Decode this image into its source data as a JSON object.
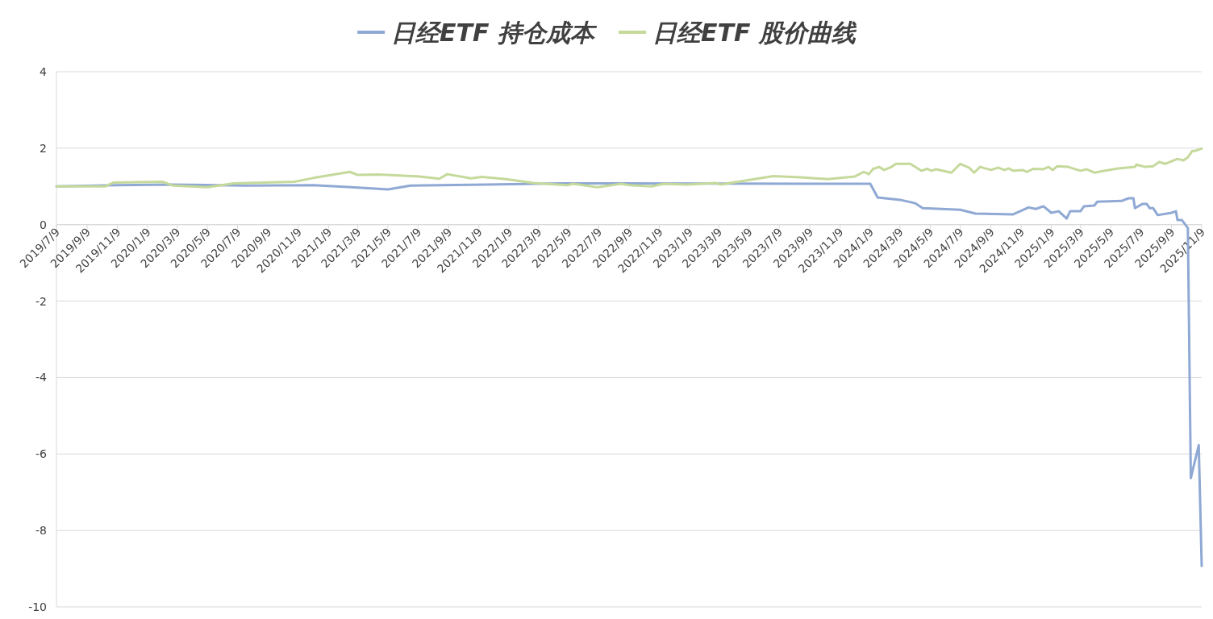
{
  "chart_data": {
    "type": "line",
    "legend": "top",
    "grid": "y",
    "xlim": [
      "2019-07-09",
      "2025-11-09"
    ],
    "xticks": [
      {
        "value": "2019-07-09",
        "label": "2019/7/9"
      },
      {
        "value": "2019-09-09",
        "label": "2019/9/9"
      },
      {
        "value": "2019-11-09",
        "label": "2019/11/9"
      },
      {
        "value": "2020-01-09",
        "label": "2020/1/9"
      },
      {
        "value": "2020-03-09",
        "label": "2020/3/9"
      },
      {
        "value": "2020-05-09",
        "label": "2020/5/9"
      },
      {
        "value": "2020-07-09",
        "label": "2020/7/9"
      },
      {
        "value": "2020-09-09",
        "label": "2020/9/9"
      },
      {
        "value": "2020-11-09",
        "label": "2020/11/9"
      },
      {
        "value": "2021-01-09",
        "label": "2021/1/9"
      },
      {
        "value": "2021-03-09",
        "label": "2021/3/9"
      },
      {
        "value": "2021-05-09",
        "label": "2021/5/9"
      },
      {
        "value": "2021-07-09",
        "label": "2021/7/9"
      },
      {
        "value": "2021-09-09",
        "label": "2021/9/9"
      },
      {
        "value": "2021-11-09",
        "label": "2021/11/9"
      },
      {
        "value": "2022-01-09",
        "label": "2022/1/9"
      },
      {
        "value": "2022-03-09",
        "label": "2022/3/9"
      },
      {
        "value": "2022-05-09",
        "label": "2022/5/9"
      },
      {
        "value": "2022-07-09",
        "label": "2022/7/9"
      },
      {
        "value": "2022-09-09",
        "label": "2022/9/9"
      },
      {
        "value": "2022-11-09",
        "label": "2022/11/9"
      },
      {
        "value": "2023-01-09",
        "label": "2023/1/9"
      },
      {
        "value": "2023-03-09",
        "label": "2023/3/9"
      },
      {
        "value": "2023-05-09",
        "label": "2023/5/9"
      },
      {
        "value": "2023-07-09",
        "label": "2023/7/9"
      },
      {
        "value": "2023-09-09",
        "label": "2023/9/9"
      },
      {
        "value": "2023-11-09",
        "label": "2023/11/9"
      },
      {
        "value": "2024-01-09",
        "label": "2024/1/9"
      },
      {
        "value": "2024-03-09",
        "label": "2024/3/9"
      },
      {
        "value": "2024-05-09",
        "label": "2024/5/9"
      },
      {
        "value": "2024-07-09",
        "label": "2024/7/9"
      },
      {
        "value": "2024-09-09",
        "label": "2024/9/9"
      },
      {
        "value": "2024-11-09",
        "label": "2024/11/9"
      },
      {
        "value": "2025-01-09",
        "label": "2025/1/9"
      },
      {
        "value": "2025-03-09",
        "label": "2025/3/9"
      },
      {
        "value": "2025-05-09",
        "label": "2025/5/9"
      },
      {
        "value": "2025-07-09",
        "label": "2025/7/9"
      },
      {
        "value": "2025-09-09",
        "label": "2025/9/9"
      },
      {
        "value": "2025-11-09",
        "label": "2025/11/9"
      }
    ],
    "ylim": [
      -10,
      4
    ],
    "yticks": [
      -10,
      -8,
      -6,
      -4,
      -2,
      0,
      2,
      4
    ],
    "series": [
      {
        "name": "日经ETF 持仓成本",
        "color": "#8fa9d4",
        "x": [
          "2019-07-09",
          "2019-11-09",
          "2020-02-24",
          "2020-07-24",
          "2020-12-09",
          "2021-02-24",
          "2021-05-09",
          "2021-06-24",
          "2021-11-24",
          "2022-04-24",
          "2023-09-09",
          "2024-01-09",
          "2024-01-24",
          "2024-03-09",
          "2024-04-09",
          "2024-04-24",
          "2024-07-09",
          "2024-08-09",
          "2024-10-24",
          "2024-11-24",
          "2024-12-09",
          "2024-12-24",
          "2025-01-09",
          "2025-01-24",
          "2025-02-09",
          "2025-02-16",
          "2025-03-09",
          "2025-03-16",
          "2025-04-06",
          "2025-04-12",
          "2025-05-31",
          "2025-06-14",
          "2025-06-24",
          "2025-06-27",
          "2025-07-12",
          "2025-07-21",
          "2025-07-27",
          "2025-08-03",
          "2025-08-12",
          "2025-09-09",
          "2025-09-18",
          "2025-09-21",
          "2025-09-30",
          "2025-10-12",
          "2025-10-18",
          "2025-11-03",
          "2025-11-09"
        ],
        "values": [
          1.0,
          1.03,
          1.05,
          1.02,
          1.03,
          0.98,
          0.92,
          1.02,
          1.05,
          1.08,
          1.07,
          1.07,
          0.71,
          0.65,
          0.56,
          0.43,
          0.39,
          0.29,
          0.27,
          0.45,
          0.41,
          0.48,
          0.31,
          0.35,
          0.16,
          0.35,
          0.35,
          0.48,
          0.5,
          0.6,
          0.62,
          0.69,
          0.69,
          0.43,
          0.54,
          0.54,
          0.43,
          0.43,
          0.25,
          0.31,
          0.35,
          0.12,
          0.12,
          -0.09,
          -6.63,
          -5.77,
          -8.93
        ]
      },
      {
        "name": "日经ETF 股价曲线",
        "color": "#c5d99b",
        "x": [
          "2019-07-09",
          "2019-10-15",
          "2019-11-01",
          "2020-02-09",
          "2020-03-01",
          "2020-05-09",
          "2020-07-01",
          "2020-11-01",
          "2020-12-09",
          "2021-02-21",
          "2021-03-09",
          "2021-04-21",
          "2021-07-12",
          "2021-08-21",
          "2021-09-06",
          "2021-10-24",
          "2021-11-15",
          "2022-01-03",
          "2022-02-27",
          "2022-05-06",
          "2022-05-18",
          "2022-07-06",
          "2022-08-24",
          "2022-09-09",
          "2022-10-24",
          "2022-11-18",
          "2023-01-03",
          "2023-03-03",
          "2023-03-12",
          "2023-06-27",
          "2023-08-21",
          "2023-10-15",
          "2023-12-09",
          "2023-12-27",
          "2024-01-06",
          "2024-01-15",
          "2024-01-27",
          "2024-02-06",
          "2024-02-21",
          "2024-03-01",
          "2024-03-30",
          "2024-04-21",
          "2024-05-03",
          "2024-05-12",
          "2024-05-21",
          "2024-06-21",
          "2024-07-09",
          "2024-07-27",
          "2024-08-06",
          "2024-08-18",
          "2024-09-09",
          "2024-09-24",
          "2024-10-06",
          "2024-10-15",
          "2024-10-24",
          "2024-11-12",
          "2024-11-21",
          "2024-12-03",
          "2024-12-24",
          "2025-01-03",
          "2025-01-12",
          "2025-01-21",
          "2025-02-12",
          "2025-03-09",
          "2025-03-21",
          "2025-04-06",
          "2025-04-27",
          "2025-05-24",
          "2025-06-27",
          "2025-06-30",
          "2025-07-18",
          "2025-08-03",
          "2025-08-15",
          "2025-08-27",
          "2025-09-21",
          "2025-10-03",
          "2025-10-12",
          "2025-10-21",
          "2025-10-27",
          "2025-11-09"
        ],
        "values": [
          1.0,
          1.0,
          1.1,
          1.12,
          1.02,
          0.98,
          1.08,
          1.12,
          1.22,
          1.38,
          1.3,
          1.31,
          1.26,
          1.2,
          1.32,
          1.21,
          1.25,
          1.19,
          1.09,
          1.03,
          1.07,
          0.98,
          1.07,
          1.03,
          1.0,
          1.07,
          1.05,
          1.09,
          1.05,
          1.27,
          1.24,
          1.19,
          1.26,
          1.38,
          1.32,
          1.46,
          1.51,
          1.43,
          1.51,
          1.59,
          1.59,
          1.41,
          1.46,
          1.41,
          1.45,
          1.36,
          1.59,
          1.49,
          1.36,
          1.51,
          1.43,
          1.49,
          1.43,
          1.47,
          1.41,
          1.43,
          1.38,
          1.46,
          1.45,
          1.51,
          1.43,
          1.53,
          1.51,
          1.41,
          1.45,
          1.36,
          1.41,
          1.47,
          1.51,
          1.57,
          1.51,
          1.53,
          1.64,
          1.59,
          1.72,
          1.68,
          1.76,
          1.93,
          1.93,
          1.99
        ]
      }
    ]
  }
}
